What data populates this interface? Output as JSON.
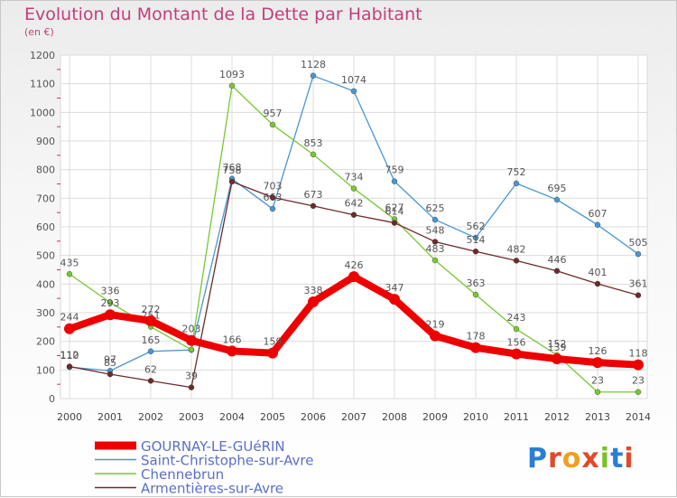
{
  "title": "Evolution du Montant de la Dette par Habitant",
  "subtitle": "(en €)",
  "logo": {
    "letters": [
      "P",
      "r",
      "o",
      "x",
      "i",
      "t",
      "i"
    ],
    "colors": [
      "#2a7fd4",
      "#e04a2a",
      "#f0a020",
      "#e04a2a",
      "#7ac02a",
      "#2a7fd4",
      "#e04a2a"
    ]
  },
  "chart_data": {
    "type": "line",
    "x": [
      "2000",
      "2001",
      "2002",
      "2003",
      "2004",
      "2005",
      "2006",
      "2007",
      "2008",
      "2009",
      "2010",
      "2011",
      "2012",
      "2013",
      "2014"
    ],
    "ylim": [
      0,
      1200
    ],
    "yticks": [
      0,
      100,
      200,
      300,
      400,
      500,
      600,
      700,
      800,
      900,
      1000,
      1100,
      1200
    ],
    "grid": true,
    "legend_placement": "bottom-left",
    "series": [
      {
        "name": "GOURNAY-LE-GUéRIN",
        "color": "#ee0000",
        "values": [
          244,
          293,
          272,
          203,
          166,
          159,
          338,
          426,
          347,
          219,
          178,
          156,
          139,
          126,
          118
        ],
        "labels": [
          "244",
          "293",
          "272",
          "203",
          "166",
          "159",
          "338",
          "426",
          "347",
          "219",
          "178",
          "156",
          "139",
          "126",
          "118"
        ]
      },
      {
        "name": "Saint-Christophe-sur-Avre",
        "color": "#4a96d2",
        "values": [
          110,
          97,
          165,
          170,
          768,
          663,
          1128,
          1074,
          759,
          625,
          562,
          752,
          695,
          607,
          505
        ],
        "labels": [
          "110",
          "97",
          "165",
          "",
          "768",
          "663",
          "1128",
          "1074",
          "759",
          "625",
          "562",
          "752",
          "695",
          "607",
          "505"
        ]
      },
      {
        "name": "Chennebrun",
        "color": "#78c832",
        "values": [
          435,
          336,
          251,
          171,
          1093,
          957,
          853,
          734,
          627,
          483,
          363,
          243,
          152,
          23,
          23
        ],
        "labels": [
          "435",
          "336",
          "251",
          "",
          "1093",
          "957",
          "853",
          "734",
          "627",
          "483",
          "363",
          "243",
          "152",
          "23",
          "23"
        ]
      },
      {
        "name": "Armentières-sur-Avre",
        "color": "#6e2a2a",
        "values": [
          112,
          85,
          62,
          39,
          758,
          703,
          673,
          642,
          614,
          548,
          514,
          482,
          446,
          401,
          361
        ],
        "labels": [
          "112",
          "85",
          "62",
          "39",
          "758",
          "703",
          "673",
          "642",
          "614",
          "548",
          "514",
          "482",
          "446",
          "401",
          "361"
        ]
      }
    ]
  }
}
